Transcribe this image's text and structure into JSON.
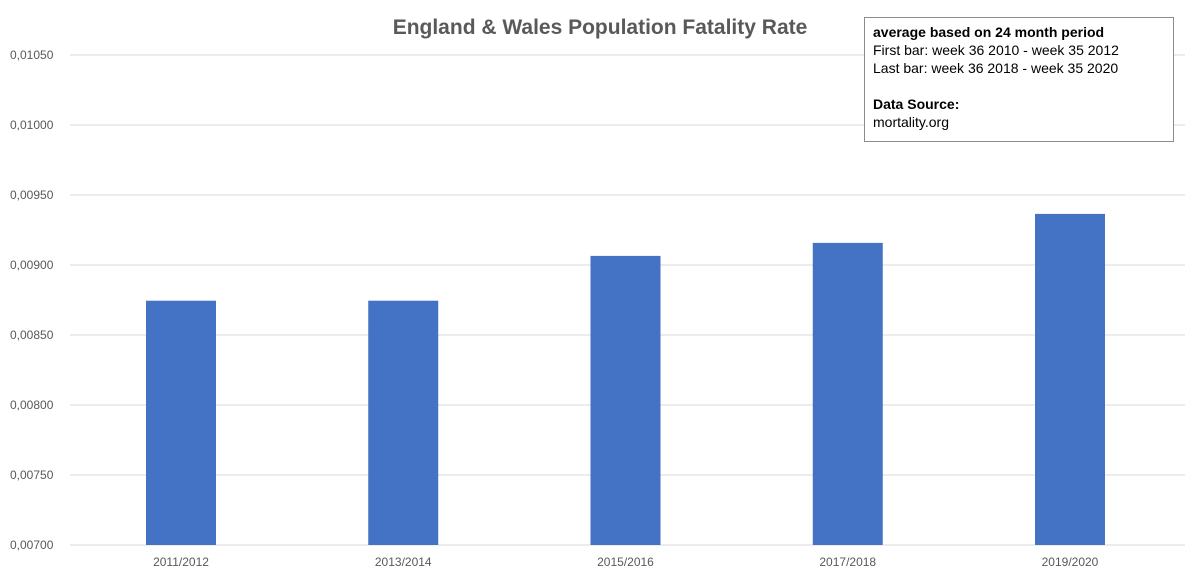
{
  "chart_data": {
    "type": "bar",
    "title": "England & Wales Population Fatality Rate",
    "categories": [
      "2011/2012",
      "2013/2014",
      "2015/2016",
      "2017/2018",
      "2019/2020"
    ],
    "series": [
      {
        "values": [
          0.008745,
          0.008745,
          0.009065,
          0.009158,
          0.009365
        ]
      }
    ],
    "ylim": [
      0.007,
      0.0105
    ],
    "yticks": [
      "0,00700",
      "0,00750",
      "0,00800",
      "0,00850",
      "0,00900",
      "0,00950",
      "0,01000",
      "0,01050"
    ],
    "ytick_values": [
      0.007,
      0.0075,
      0.008,
      0.0085,
      0.009,
      0.0095,
      0.01,
      0.0105
    ],
    "grid": true,
    "legend": "none",
    "bar_color": "#4472c4",
    "grid_color": "#d9d9d9"
  },
  "annotation": {
    "heading": "average based on 24 month period",
    "line1": "First bar: week 36 2010  - week 35 2012",
    "line2": "Last bar: week 36 2018  - week 35 2020",
    "source_label": "Data Source:",
    "source_value": "mortality.org"
  }
}
